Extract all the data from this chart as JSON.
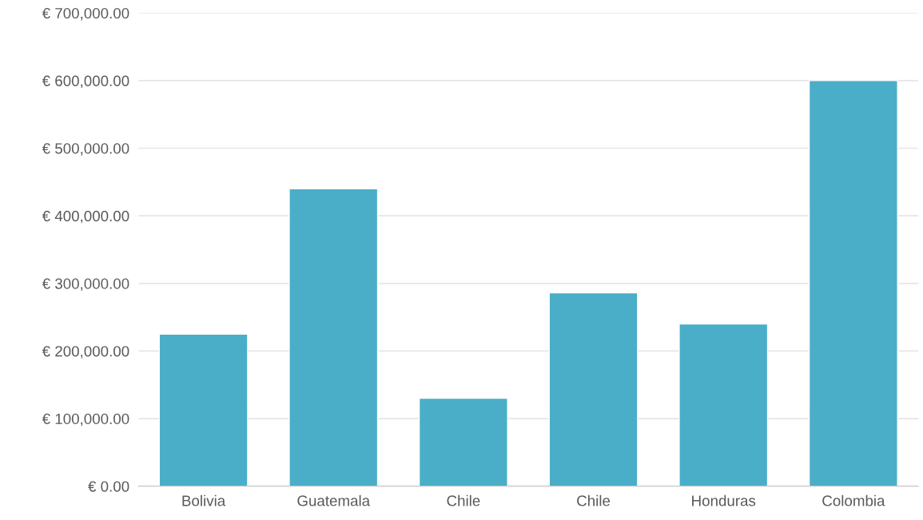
{
  "chart_data": {
    "type": "bar",
    "categories": [
      "Bolivia",
      "Guatemala",
      "Chile",
      "Chile",
      "Honduras",
      "Colombia"
    ],
    "values": [
      225000,
      440000,
      130000,
      286000,
      240000,
      600000
    ],
    "color": "#4aaec8",
    "ylim": [
      0,
      700000
    ],
    "yticks": [
      {
        "value": 0,
        "label": "€ 0.00"
      },
      {
        "value": 100000,
        "label": "€ 100,000.00"
      },
      {
        "value": 200000,
        "label": "€ 200,000.00"
      },
      {
        "value": 300000,
        "label": "€ 300,000.00"
      },
      {
        "value": 400000,
        "label": "€ 400,000.00"
      },
      {
        "value": 500000,
        "label": "€ 500,000.00"
      },
      {
        "value": 600000,
        "label": "€ 600,000.00"
      },
      {
        "value": 700000,
        "label": "€ 700,000.00"
      }
    ],
    "grid": "y"
  }
}
